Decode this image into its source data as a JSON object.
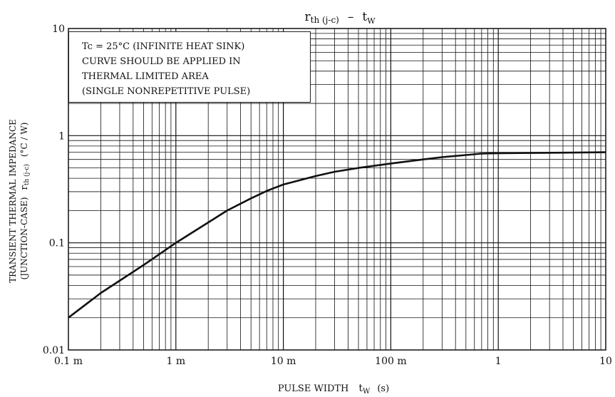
{
  "chart_data": {
    "type": "line",
    "title_main": "r",
    "title_sub": "th (j-c)",
    "title_dash": "–",
    "title_t": "t",
    "title_w": "W",
    "xscale": "log",
    "yscale": "log",
    "xlim": [
      0.0001,
      10
    ],
    "ylim": [
      0.01,
      10
    ],
    "grid": true,
    "x_tick_labels": [
      "0.1 m",
      "1 m",
      "10 m",
      "100 m",
      "1",
      "10"
    ],
    "y_tick_labels": [
      "0.01",
      "0.1",
      "1",
      "10"
    ],
    "xlabel": "PULSE WIDTH",
    "xlabel_t": "t",
    "xlabel_w": "W",
    "xlabel_unit": "(s)",
    "ylabel_line1": "TRANSIENT THERMAL IMPEDANCE",
    "ylabel_line2_a": "(JUNCTION-CASE)",
    "ylabel_line2_r": "r",
    "ylabel_line2_sub": "th (j-c)",
    "ylabel_line2_unit": "(°C / W)",
    "annotation": [
      "Tc = 25°C (INFINITE HEAT SINK)",
      "CURVE SHOULD BE APPLIED IN",
      "THERMAL LIMITED AREA",
      "(SINGLE NONREPETITIVE PULSE)"
    ],
    "series": [
      {
        "x": [
          0.0001,
          0.0002,
          0.0005,
          0.001,
          0.002,
          0.003,
          0.005,
          0.007,
          0.01,
          0.02,
          0.03,
          0.05,
          0.1,
          0.2,
          0.3,
          0.5,
          0.7,
          1,
          2,
          5,
          10
        ],
        "y": [
          0.02,
          0.034,
          0.062,
          0.1,
          0.155,
          0.2,
          0.26,
          0.305,
          0.35,
          0.42,
          0.46,
          0.5,
          0.55,
          0.6,
          0.63,
          0.66,
          0.68,
          0.685,
          0.69,
          0.695,
          0.7
        ]
      }
    ]
  }
}
